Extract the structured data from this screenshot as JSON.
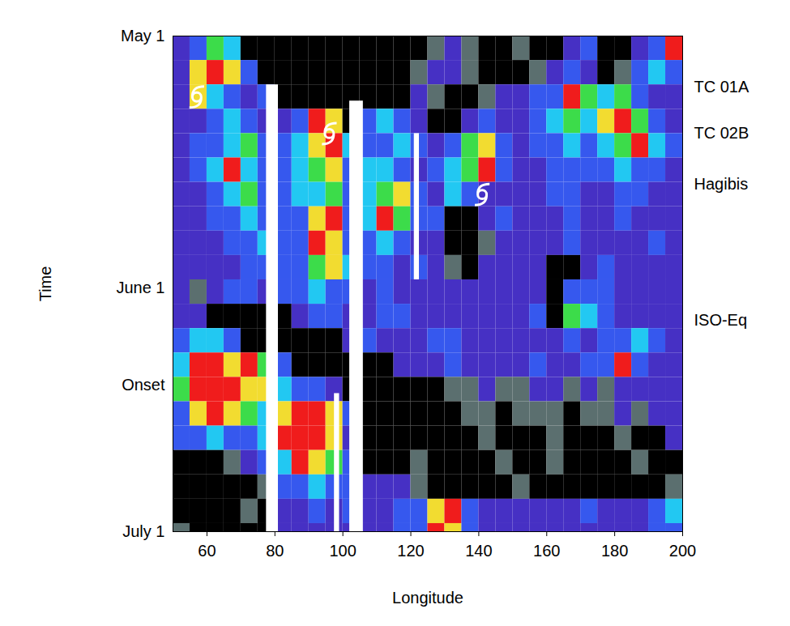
{
  "chart_data": {
    "type": "heatmap",
    "x_label": "Longitude",
    "y_label": "Time",
    "xlim": [
      50,
      200
    ],
    "xticks": [
      60,
      80,
      100,
      120,
      140,
      160,
      180,
      200
    ],
    "ylim": [
      0,
      61
    ],
    "yticks": [
      {
        "value": 0,
        "label": "May 1"
      },
      {
        "value": 31,
        "label": "June 1"
      },
      {
        "value": 43,
        "label": "Onset"
      },
      {
        "value": 61,
        "label": "July 1"
      }
    ],
    "lon_edges": [
      50,
      55,
      60,
      65,
      70,
      75,
      80,
      85,
      90,
      95,
      100,
      105,
      110,
      115,
      120,
      125,
      130,
      135,
      140,
      145,
      150,
      155,
      160,
      165,
      170,
      175,
      180,
      185,
      190,
      195,
      200
    ],
    "day_edges": [
      0,
      3,
      6,
      9,
      12,
      15,
      18,
      21,
      24,
      27,
      30,
      33,
      36,
      39,
      42,
      45,
      48,
      51,
      54,
      57,
      60,
      61
    ],
    "levels": [
      0,
      1,
      2,
      3,
      4,
      5,
      6,
      7
    ],
    "level_colors": [
      "#000000",
      "#5b6f6f",
      "#4630c4",
      "#3658ee",
      "#22c8f2",
      "#3cdc4a",
      "#f2dc30",
      "#f01c1c"
    ],
    "cells": [
      [
        2,
        3,
        5,
        4,
        0,
        0,
        0,
        0,
        0,
        0,
        0,
        0,
        0,
        0,
        0,
        1,
        2,
        1,
        0,
        0,
        1,
        0,
        0,
        2,
        3,
        0,
        0,
        2,
        3,
        7
      ],
      [
        2,
        6,
        7,
        6,
        3,
        0,
        0,
        0,
        0,
        0,
        0,
        0,
        0,
        0,
        1,
        2,
        2,
        1,
        0,
        0,
        0,
        1,
        2,
        3,
        2,
        0,
        1,
        3,
        4,
        3
      ],
      [
        2,
        6,
        4,
        3,
        2,
        3,
        0,
        0,
        0,
        0,
        0,
        0,
        0,
        0,
        2,
        1,
        0,
        0,
        1,
        2,
        2,
        3,
        3,
        7,
        5,
        4,
        5,
        3,
        2,
        2
      ],
      [
        2,
        2,
        3,
        4,
        3,
        2,
        2,
        3,
        7,
        6,
        0,
        3,
        4,
        3,
        2,
        0,
        0,
        2,
        3,
        2,
        2,
        3,
        4,
        5,
        4,
        6,
        7,
        5,
        3,
        2
      ],
      [
        2,
        3,
        3,
        4,
        5,
        3,
        3,
        4,
        6,
        7,
        4,
        3,
        3,
        4,
        3,
        2,
        3,
        5,
        6,
        3,
        2,
        3,
        3,
        4,
        3,
        4,
        5,
        7,
        4,
        3
      ],
      [
        2,
        3,
        4,
        7,
        4,
        3,
        3,
        4,
        5,
        6,
        3,
        4,
        4,
        3,
        2,
        3,
        4,
        5,
        7,
        3,
        2,
        2,
        3,
        3,
        3,
        3,
        4,
        3,
        3,
        2
      ],
      [
        2,
        2,
        3,
        4,
        5,
        3,
        3,
        4,
        4,
        5,
        3,
        4,
        5,
        6,
        3,
        2,
        4,
        3,
        2,
        2,
        2,
        2,
        3,
        3,
        2,
        2,
        3,
        3,
        2,
        2
      ],
      [
        2,
        2,
        3,
        3,
        4,
        3,
        3,
        3,
        6,
        7,
        3,
        4,
        7,
        5,
        3,
        3,
        0,
        0,
        2,
        3,
        2,
        2,
        2,
        3,
        2,
        2,
        3,
        2,
        2,
        2
      ],
      [
        2,
        2,
        2,
        3,
        3,
        4,
        3,
        3,
        7,
        6,
        3,
        3,
        4,
        3,
        2,
        2,
        0,
        0,
        1,
        2,
        2,
        2,
        2,
        3,
        2,
        2,
        2,
        2,
        3,
        2
      ],
      [
        2,
        2,
        2,
        2,
        3,
        3,
        3,
        3,
        5,
        6,
        4,
        3,
        3,
        2,
        3,
        2,
        1,
        0,
        2,
        2,
        2,
        2,
        0,
        0,
        2,
        3,
        2,
        2,
        2,
        2
      ],
      [
        2,
        1,
        2,
        3,
        3,
        2,
        3,
        3,
        4,
        3,
        3,
        2,
        3,
        2,
        2,
        2,
        2,
        2,
        2,
        2,
        2,
        2,
        0,
        3,
        3,
        3,
        2,
        2,
        2,
        2
      ],
      [
        2,
        2,
        0,
        0,
        0,
        0,
        0,
        2,
        3,
        3,
        2,
        2,
        3,
        3,
        2,
        2,
        2,
        2,
        2,
        2,
        2,
        3,
        0,
        5,
        4,
        3,
        2,
        2,
        2,
        2
      ],
      [
        3,
        4,
        4,
        3,
        0,
        0,
        0,
        0,
        0,
        0,
        2,
        3,
        2,
        2,
        2,
        3,
        3,
        2,
        2,
        2,
        2,
        2,
        2,
        3,
        2,
        3,
        3,
        4,
        3,
        2
      ],
      [
        4,
        7,
        7,
        6,
        7,
        5,
        3,
        0,
        0,
        0,
        0,
        0,
        0,
        2,
        2,
        2,
        3,
        2,
        2,
        2,
        2,
        3,
        2,
        2,
        3,
        3,
        7,
        3,
        2,
        2
      ],
      [
        5,
        7,
        7,
        7,
        6,
        6,
        4,
        3,
        3,
        2,
        0,
        0,
        0,
        0,
        0,
        0,
        1,
        1,
        2,
        1,
        1,
        2,
        2,
        1,
        2,
        1,
        2,
        2,
        2,
        2
      ],
      [
        3,
        6,
        7,
        6,
        5,
        4,
        6,
        7,
        7,
        6,
        3,
        0,
        0,
        0,
        0,
        0,
        0,
        1,
        1,
        0,
        1,
        1,
        1,
        0,
        1,
        1,
        2,
        1,
        2,
        2
      ],
      [
        3,
        3,
        4,
        3,
        3,
        4,
        7,
        7,
        7,
        6,
        2,
        0,
        0,
        0,
        0,
        0,
        0,
        0,
        1,
        0,
        0,
        0,
        1,
        0,
        0,
        0,
        1,
        0,
        0,
        2
      ],
      [
        0,
        0,
        0,
        1,
        2,
        3,
        4,
        7,
        6,
        5,
        3,
        0,
        0,
        0,
        1,
        0,
        0,
        0,
        0,
        1,
        0,
        0,
        1,
        0,
        0,
        0,
        0,
        1,
        0,
        0
      ],
      [
        0,
        0,
        0,
        0,
        0,
        1,
        3,
        3,
        4,
        3,
        3,
        2,
        2,
        2,
        1,
        0,
        0,
        0,
        0,
        0,
        1,
        0,
        0,
        0,
        0,
        0,
        0,
        0,
        0,
        1
      ],
      [
        0,
        0,
        0,
        0,
        1,
        0,
        2,
        2,
        3,
        2,
        3,
        2,
        2,
        3,
        3,
        6,
        7,
        3,
        2,
        2,
        2,
        2,
        2,
        2,
        3,
        2,
        2,
        2,
        3,
        4
      ],
      [
        1,
        0,
        0,
        0,
        0,
        0,
        2,
        2,
        2,
        2,
        2,
        2,
        2,
        3,
        3,
        7,
        6,
        3,
        2,
        2,
        2,
        2,
        2,
        2,
        2,
        2,
        2,
        2,
        3,
        3
      ]
    ],
    "missing": [
      {
        "lon": [
          77.5,
          81
        ],
        "day": [
          6,
          61
        ]
      },
      {
        "lon": [
          102,
          106
        ],
        "day": [
          8,
          61
        ]
      },
      {
        "lon": [
          121,
          122.5
        ],
        "day": [
          12,
          30
        ]
      },
      {
        "lon": [
          97.5,
          99
        ],
        "day": [
          44,
          61
        ]
      }
    ],
    "cyclones": [
      {
        "lon": 57,
        "day": 7.5
      },
      {
        "lon": 96,
        "day": 12
      },
      {
        "lon": 141,
        "day": 19.5
      }
    ],
    "annotations": [
      {
        "text": "TC 01A",
        "day": 6.3
      },
      {
        "text": "TC 02B",
        "day": 12
      },
      {
        "text": "Hagibis",
        "day": 18.2
      },
      {
        "text": "ISO-Eq",
        "day": 35
      }
    ]
  }
}
